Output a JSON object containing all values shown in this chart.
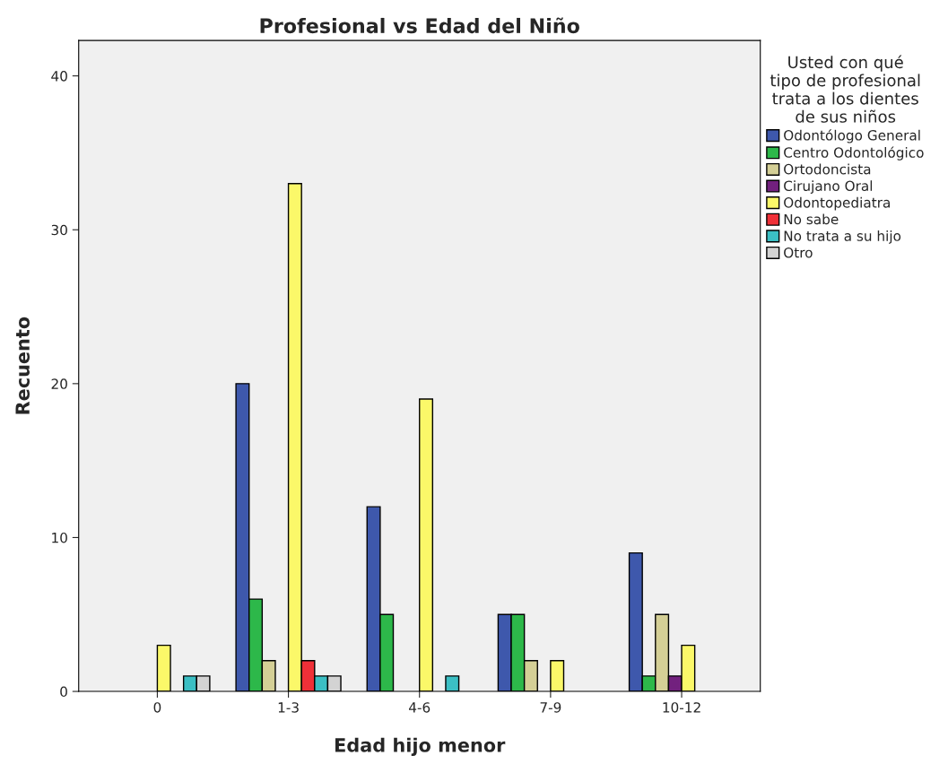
{
  "chart_data": {
    "type": "bar",
    "title": "Profesional vs Edad del Niño",
    "xlabel": "Edad hijo menor",
    "ylabel": "Recuento",
    "legend_title": "Usted con qué\ntipo de profesional\ntrata a los dientes\nde sus niños",
    "categories": [
      "0",
      "1-3",
      "4-6",
      "7-9",
      "10-12"
    ],
    "series": [
      {
        "name": "Odontólogo General",
        "color": "#3e58ac",
        "values": [
          null,
          20,
          12,
          5,
          9
        ]
      },
      {
        "name": "Centro Odontológico",
        "color": "#2db84a",
        "values": [
          null,
          6,
          5,
          5,
          1
        ]
      },
      {
        "name": "Ortodoncista",
        "color": "#d4cf96",
        "values": [
          null,
          2,
          null,
          2,
          5
        ]
      },
      {
        "name": "Cirujano Oral",
        "color": "#72217e",
        "values": [
          null,
          null,
          null,
          null,
          1
        ]
      },
      {
        "name": "Odontopediatra",
        "color": "#fbf869",
        "values": [
          3,
          33,
          19,
          2,
          3
        ]
      },
      {
        "name": "No sabe",
        "color": "#ef3038",
        "values": [
          null,
          2,
          null,
          null,
          null
        ]
      },
      {
        "name": "No trata a su hijo",
        "color": "#3bbfc4",
        "values": [
          1,
          1,
          1,
          null,
          null
        ]
      },
      {
        "name": "Otro",
        "color": "#d3d3d3",
        "values": [
          1,
          1,
          null,
          null,
          null
        ]
      }
    ],
    "ylim": [
      0,
      42.3
    ],
    "yticks": [
      0,
      10,
      20,
      30,
      40
    ],
    "grid": false,
    "legend": "right"
  }
}
